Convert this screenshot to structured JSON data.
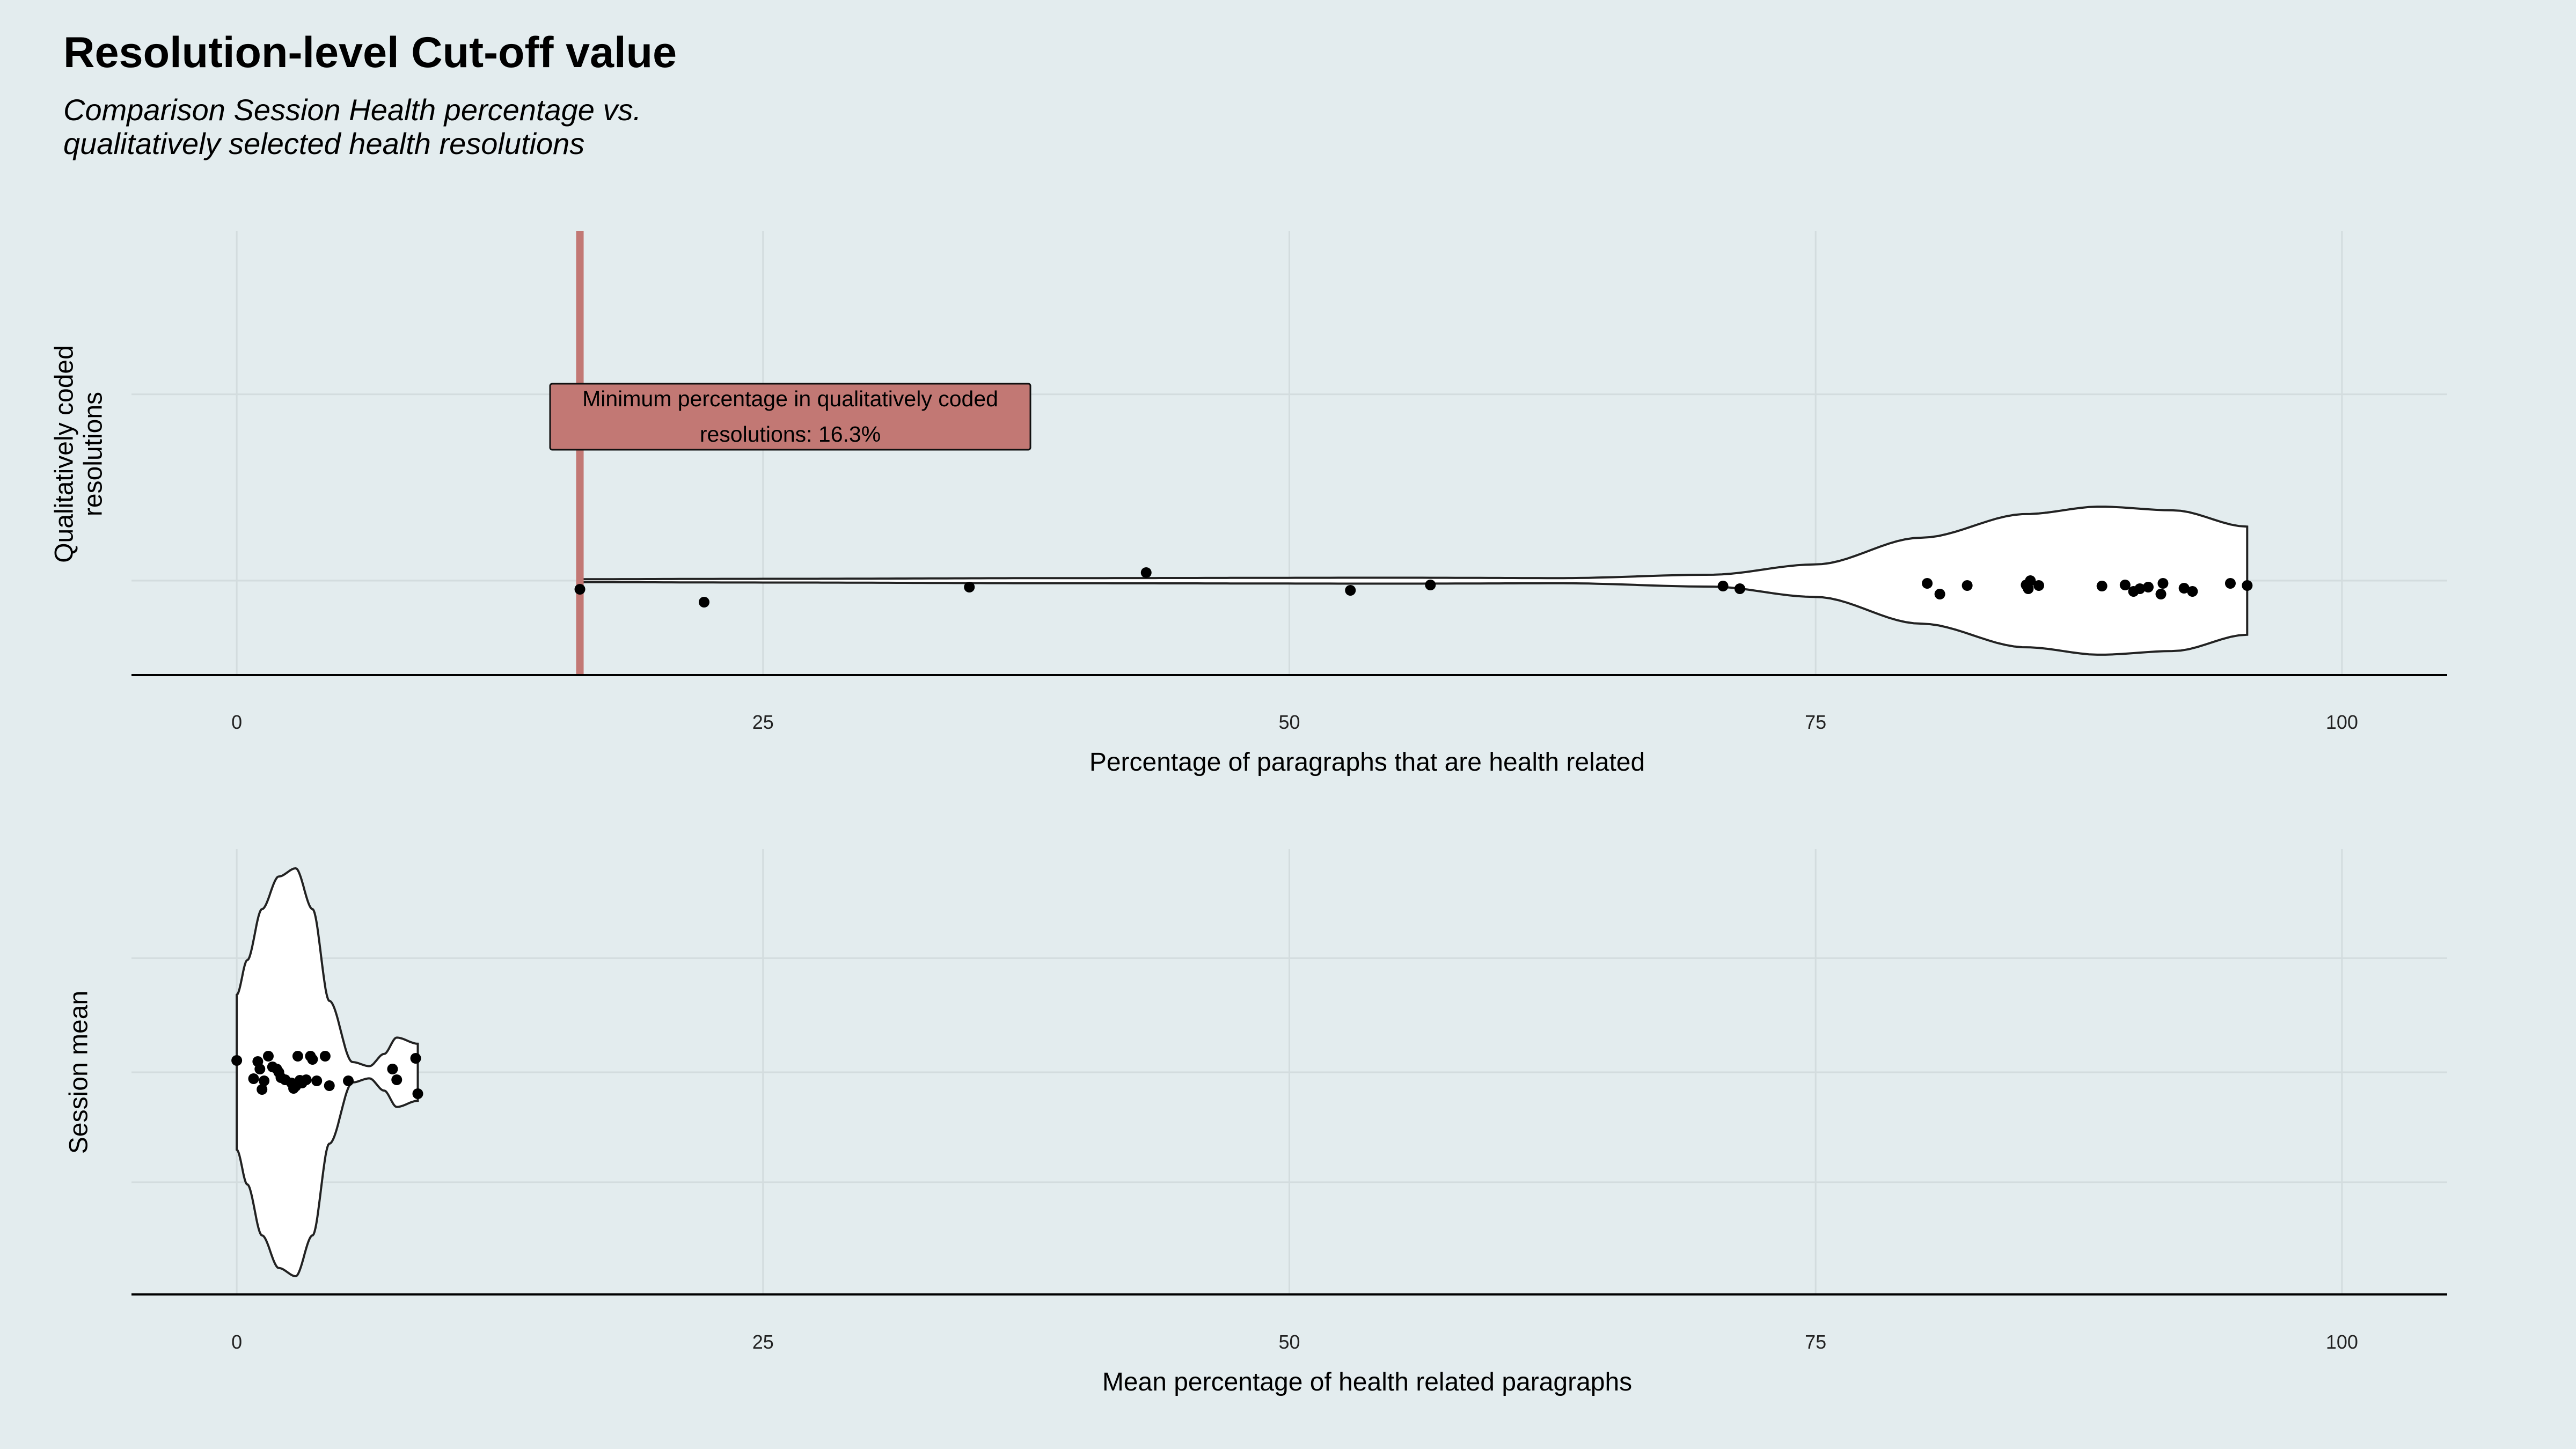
{
  "title": "Resolution-level Cut-off value",
  "subtitle_lines": [
    "Comparison Session Health percentage vs.",
    "qualitatively selected health resolutions"
  ],
  "colors": {
    "background": "#e3ecee",
    "cutoff": "#c27874",
    "violin_fill": "#ffffff",
    "point": "#000000"
  },
  "chart_data": [
    {
      "type": "violin",
      "title": "",
      "xlabel": "Percentage of paragraphs that are health related",
      "ylabel_lines": [
        "Qualitatively coded",
        "resolutions"
      ],
      "xlim": [
        -5,
        105
      ],
      "xticks": [
        0,
        25,
        50,
        75,
        100
      ],
      "grid": true,
      "cutoff": {
        "x": 16.3,
        "label_lines": [
          "Minimum percentage in qualitatively coded",
          "resolutions: 16.3%"
        ]
      },
      "points": [
        16.3,
        22.2,
        34.8,
        43.2,
        52.9,
        56.7,
        70.6,
        71.4,
        80.3,
        80.9,
        82.2,
        85.0,
        85.1,
        85.2,
        85.6,
        88.6,
        89.7,
        90.1,
        90.4,
        90.8,
        91.4,
        91.5,
        92.5,
        92.9,
        94.7,
        95.5
      ],
      "density": [
        [
          16.3,
          0.02
        ],
        [
          25,
          0.025
        ],
        [
          40,
          0.035
        ],
        [
          55,
          0.04
        ],
        [
          63,
          0.035
        ],
        [
          70,
          0.08
        ],
        [
          75,
          0.22
        ],
        [
          80,
          0.58
        ],
        [
          85,
          0.9
        ],
        [
          88.5,
          1.0
        ],
        [
          92,
          0.95
        ],
        [
          95.5,
          0.73
        ]
      ]
    },
    {
      "type": "violin",
      "title": "",
      "xlabel": "Mean percentage of health related paragraphs",
      "ylabel_lines": [
        "Session mean"
      ],
      "xlim": [
        -5,
        105
      ],
      "xticks": [
        0,
        25,
        50,
        75,
        100
      ],
      "grid": true,
      "points": [
        0.0,
        0.8,
        1.0,
        1.1,
        1.2,
        1.3,
        1.5,
        1.7,
        1.9,
        2.0,
        2.1,
        2.3,
        2.6,
        2.7,
        2.8,
        2.9,
        3.0,
        3.1,
        3.3,
        3.5,
        3.6,
        3.8,
        4.2,
        4.4,
        5.3,
        7.4,
        7.6,
        8.5,
        8.6
      ],
      "density": [
        [
          0,
          0.38
        ],
        [
          0.5,
          0.55
        ],
        [
          1.2,
          0.8
        ],
        [
          2.0,
          0.96
        ],
        [
          2.8,
          1.0
        ],
        [
          3.6,
          0.8
        ],
        [
          4.4,
          0.35
        ],
        [
          5.5,
          0.05
        ],
        [
          6.3,
          0.03
        ],
        [
          7.0,
          0.09
        ],
        [
          7.6,
          0.17
        ],
        [
          8.6,
          0.14
        ]
      ]
    }
  ]
}
